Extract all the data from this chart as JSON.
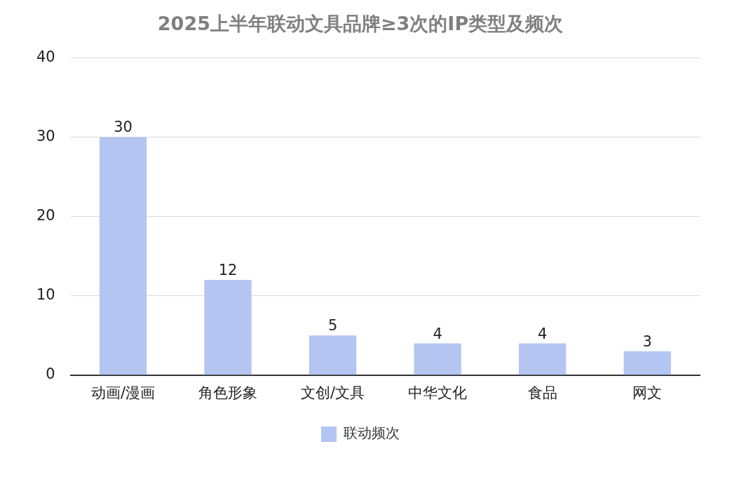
{
  "chart_data": {
    "type": "bar",
    "title": "2025上半年联动文具品牌≥3次的IP类型及频次",
    "categories": [
      "动画/漫画",
      "角色形象",
      "文创/文具",
      "中华文化",
      "食品",
      "网文"
    ],
    "series": [
      {
        "name": "联动频次",
        "color": "#b4c5f2",
        "values": [
          30,
          12,
          5,
          4,
          4,
          3
        ]
      }
    ],
    "ylim": [
      0,
      40
    ],
    "yticks": [
      0,
      10,
      20,
      30,
      40
    ],
    "grid": "y",
    "legend": "bottom",
    "data_labels": true
  }
}
